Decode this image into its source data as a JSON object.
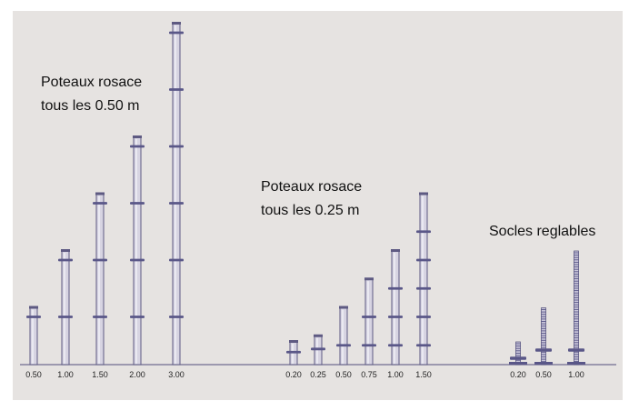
{
  "groups": [
    {
      "id": "rosace-050",
      "label_lines": [
        "Poteaux rosace",
        "tous les 0.50 m"
      ],
      "item_type": "post",
      "rosette_spacing_m": 0.5,
      "items": [
        {
          "length_m": 0.5,
          "label": "0.50"
        },
        {
          "length_m": 1.0,
          "label": "1.00"
        },
        {
          "length_m": 1.5,
          "label": "1.50"
        },
        {
          "length_m": 2.0,
          "label": "2.00"
        },
        {
          "length_m": 3.0,
          "label": "3.00"
        }
      ]
    },
    {
      "id": "rosace-025",
      "label_lines": [
        "Poteaux rosace",
        "tous les 0.25 m"
      ],
      "item_type": "post",
      "rosette_spacing_m": 0.25,
      "items": [
        {
          "length_m": 0.2,
          "label": "0.20"
        },
        {
          "length_m": 0.25,
          "label": "0.25"
        },
        {
          "length_m": 0.5,
          "label": "0.50"
        },
        {
          "length_m": 0.75,
          "label": "0.75"
        },
        {
          "length_m": 1.0,
          "label": "1.00"
        },
        {
          "length_m": 1.5,
          "label": "1.50"
        }
      ]
    },
    {
      "id": "socles",
      "label_lines": [
        "Socles reglables"
      ],
      "item_type": "jack",
      "items": [
        {
          "length_m": 0.2,
          "label": "0.20"
        },
        {
          "length_m": 0.5,
          "label": "0.50"
        },
        {
          "length_m": 1.0,
          "label": "1.00"
        }
      ]
    }
  ],
  "colors": {
    "background": "#e6e3e1",
    "post_fill": "#d7d4e2",
    "post_stroke": "#5e5a82",
    "rosette": "#5a5788",
    "ground_line": "#6f6c90",
    "text": "#111111"
  }
}
